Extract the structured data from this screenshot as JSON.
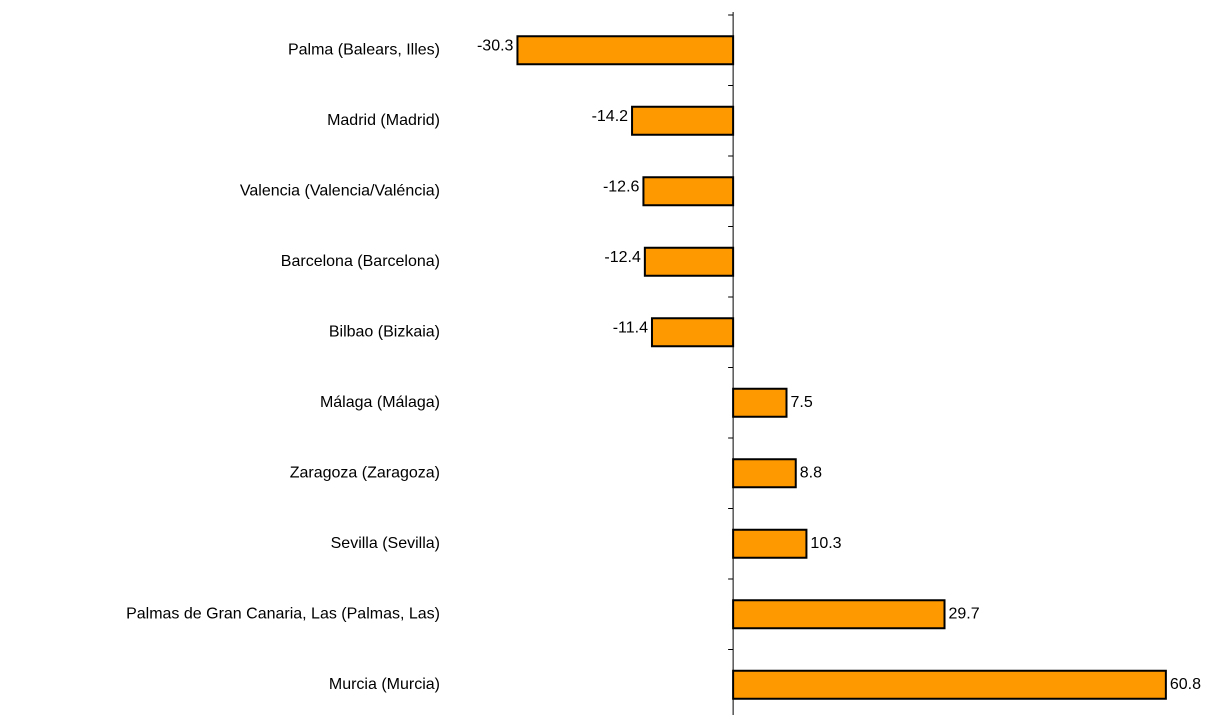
{
  "chart_data": {
    "type": "bar",
    "orientation": "horizontal",
    "categories": [
      "Palma (Balears, Illes)",
      "Madrid (Madrid)",
      "Valencia (Valencia/Valéncia)",
      "Barcelona (Barcelona)",
      "Bilbao (Bizkaia)",
      "Málaga (Málaga)",
      "Zaragoza (Zaragoza)",
      "Sevilla (Sevilla)",
      "Palmas de Gran Canaria, Las (Palmas, Las)",
      "Murcia (Murcia)"
    ],
    "values": [
      -30.3,
      -14.2,
      -12.6,
      -12.4,
      -11.4,
      7.5,
      8.8,
      10.3,
      29.7,
      60.8
    ],
    "color": "#ff9900",
    "xlim": [
      -35,
      67
    ]
  }
}
